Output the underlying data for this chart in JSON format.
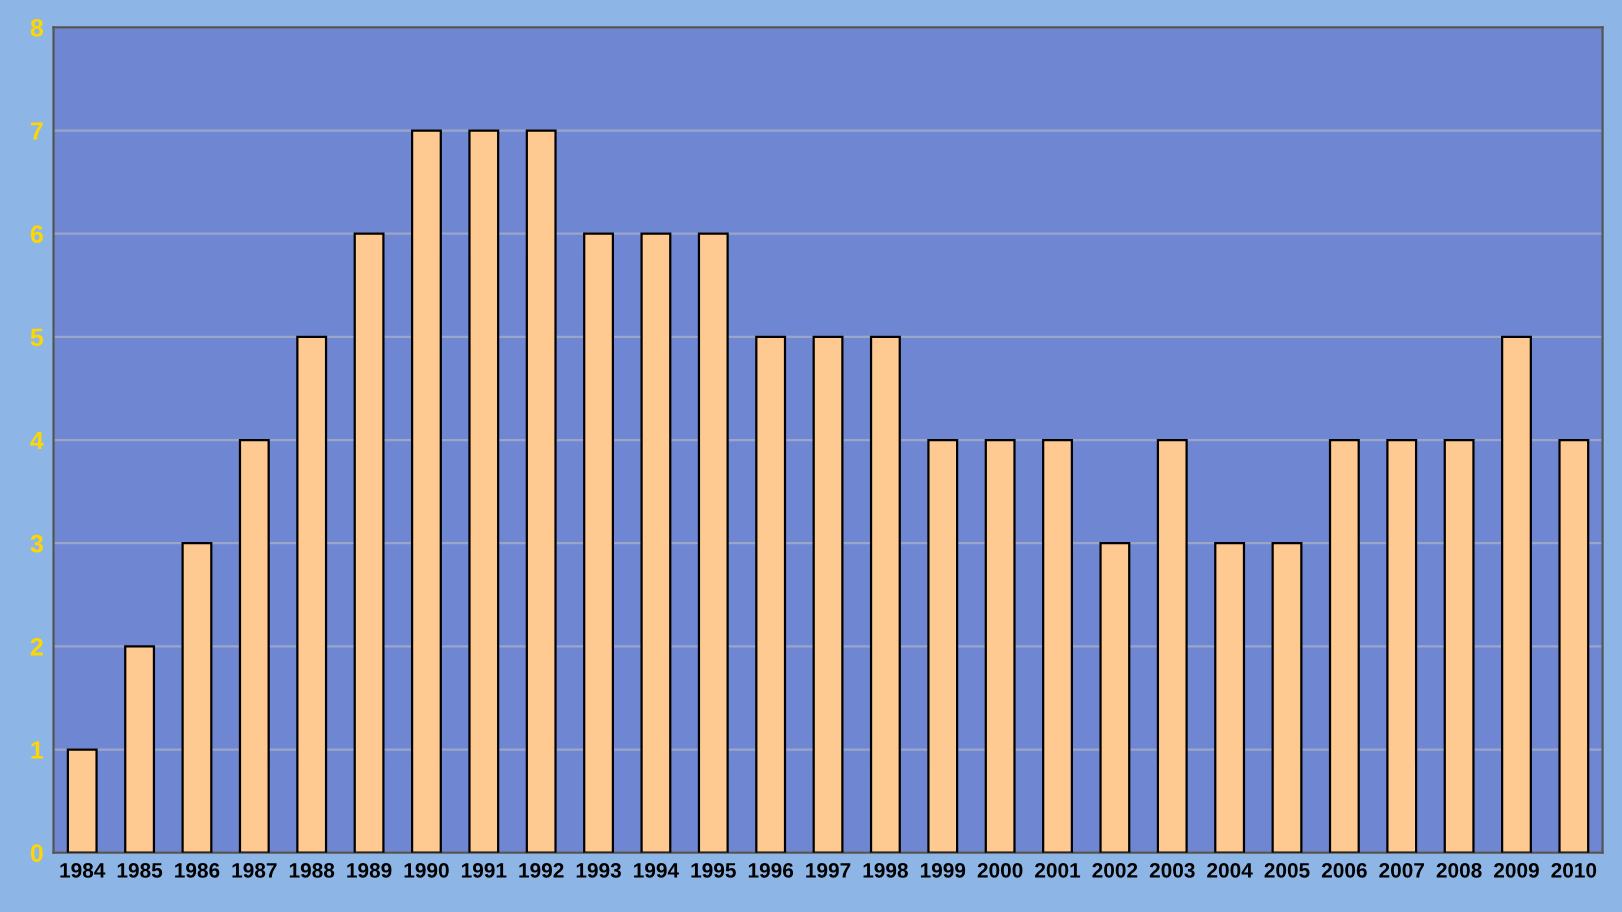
{
  "chart_data": {
    "type": "bar",
    "categories": [
      "1984",
      "1985",
      "1986",
      "1987",
      "1988",
      "1989",
      "1990",
      "1991",
      "1992",
      "1993",
      "1994",
      "1995",
      "1996",
      "1997",
      "1998",
      "1999",
      "2000",
      "2001",
      "2002",
      "2003",
      "2004",
      "2005",
      "2006",
      "2007",
      "2008",
      "2009",
      "2010"
    ],
    "values": [
      1,
      2,
      3,
      4,
      5,
      6,
      7,
      7,
      7,
      6,
      6,
      6,
      5,
      5,
      5,
      4,
      4,
      4,
      3,
      4,
      3,
      3,
      4,
      4,
      4,
      5,
      4
    ],
    "color": "#ffc992",
    "ylim": [
      0,
      8
    ],
    "yticks": [
      0,
      1,
      2,
      3,
      4,
      5,
      6,
      7,
      8
    ],
    "grid": "y"
  }
}
